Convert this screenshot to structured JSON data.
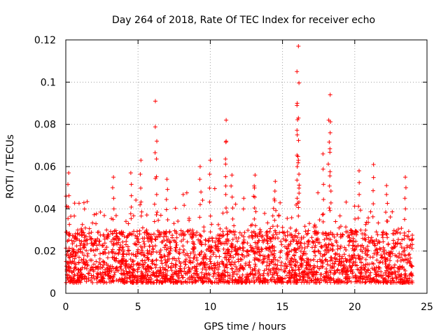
{
  "chart_data": {
    "type": "scatter",
    "title": "Day 264 of 2018, Rate Of TEC Index for receiver echo",
    "xlabel": "GPS time / hours",
    "ylabel": "ROTI / TECUs",
    "xlim": [
      0,
      25
    ],
    "ylim": [
      0,
      0.12
    ],
    "xticks": [
      0,
      5,
      10,
      15,
      20,
      25
    ],
    "yticks": [
      0,
      0.02,
      0.04,
      0.06,
      0.08,
      0.1,
      0.12
    ],
    "xtick_labels": [
      "0",
      "5",
      "10",
      "15",
      "20",
      "25"
    ],
    "ytick_labels": [
      "0",
      "0.02",
      "0.04",
      "0.06",
      "0.08",
      "0.1",
      "0.12"
    ],
    "grid": true,
    "marker": "+",
    "color": "#ff0000",
    "series": [
      {
        "name": "ROTI",
        "data_range_x": [
          0,
          24
        ],
        "baseline_range_y": [
          0.005,
          0.03
        ],
        "peaks": [
          {
            "x": 0.2,
            "y": 0.057
          },
          {
            "x": 3.3,
            "y": 0.055
          },
          {
            "x": 4.5,
            "y": 0.057
          },
          {
            "x": 5.2,
            "y": 0.063
          },
          {
            "x": 6.2,
            "y": 0.091
          },
          {
            "x": 6.3,
            "y": 0.072
          },
          {
            "x": 7.0,
            "y": 0.054
          },
          {
            "x": 9.3,
            "y": 0.06
          },
          {
            "x": 10.0,
            "y": 0.063
          },
          {
            "x": 11.1,
            "y": 0.082
          },
          {
            "x": 11.1,
            "y": 0.072
          },
          {
            "x": 11.5,
            "y": 0.056
          },
          {
            "x": 13.1,
            "y": 0.056
          },
          {
            "x": 14.5,
            "y": 0.053
          },
          {
            "x": 16.1,
            "y": 0.117
          },
          {
            "x": 16.0,
            "y": 0.105
          },
          {
            "x": 16.0,
            "y": 0.089
          },
          {
            "x": 16.1,
            "y": 0.083
          },
          {
            "x": 16.1,
            "y": 0.063
          },
          {
            "x": 17.8,
            "y": 0.066
          },
          {
            "x": 18.3,
            "y": 0.094
          },
          {
            "x": 18.2,
            "y": 0.082
          },
          {
            "x": 18.3,
            "y": 0.076
          },
          {
            "x": 20.3,
            "y": 0.058
          },
          {
            "x": 21.3,
            "y": 0.061
          },
          {
            "x": 22.2,
            "y": 0.051
          },
          {
            "x": 23.5,
            "y": 0.055
          }
        ]
      }
    ]
  }
}
